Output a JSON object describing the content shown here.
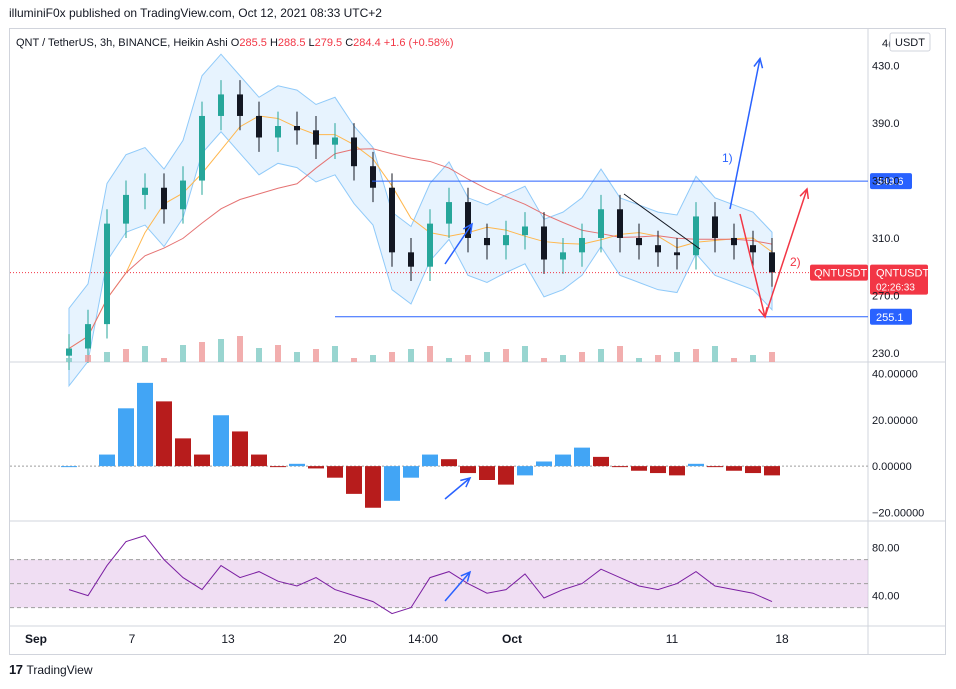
{
  "published_line": "illuminiF0x published on TradingView.com, Oct 12, 2021 08:33 UTC+2",
  "header": {
    "symbol": "QNT / TetherUS, 3h, BINANCE, Heikin Ashi",
    "o_label": "O",
    "o_value": "285.5",
    "h_label": "H",
    "h_value": "288.5",
    "l_label": "L",
    "l_value": "279.5",
    "c_label": "C",
    "c_value": "284.4",
    "change": "+1.6 (+0.58%)",
    "currency_badge": "USDT",
    "top_axis_partial": "4("
  },
  "colors": {
    "up": "#26a69a",
    "down": "#131722",
    "accent_blue": "#2962ff",
    "red": "#f23645",
    "hist_red": "#b71c1c",
    "hist_blue": "#42a5f5",
    "rsi": "#7b1fa2",
    "bb_fill": "#bbdefb",
    "ma_red": "#e57373",
    "ma_orange": "#ffb74d"
  },
  "chart_data": [
    {
      "type": "candlestick",
      "title": "QNT / TetherUS, 3h, BINANCE, Heikin Ashi",
      "x_ticks": [
        "Sep",
        "7",
        "13",
        "20",
        "14:00",
        "Oct",
        "11",
        "18"
      ],
      "y_ticks": [
        "430.0",
        "390.0",
        "350.0",
        "310.0",
        "270.0",
        "230.0"
      ],
      "ylim": [
        225,
        450
      ],
      "series": [
        {
          "name": "Heikin Ashi closes (approx.)",
          "x": [
            3,
            4,
            5,
            6,
            7,
            8,
            9,
            10,
            11,
            12,
            13,
            14,
            15,
            16,
            17,
            18,
            19,
            20,
            21,
            22,
            23,
            24,
            25,
            26,
            27,
            28,
            29,
            30,
            31,
            32,
            33,
            34,
            35,
            36,
            37,
            38,
            39,
            40
          ],
          "values": [
            233,
            250,
            320,
            340,
            345,
            330,
            350,
            395,
            410,
            395,
            380,
            388,
            385,
            375,
            380,
            360,
            345,
            300,
            290,
            320,
            335,
            310,
            305,
            312,
            318,
            295,
            300,
            310,
            330,
            310,
            305,
            300,
            298,
            325,
            310,
            305,
            300,
            286
          ]
        }
      ],
      "bollinger": {
        "upper_approx": 330,
        "lower_approx": 280
      },
      "levels": [
        {
          "label": "349.6",
          "value": 349.6,
          "color": "#2962ff"
        },
        {
          "label": "255.1",
          "value": 255.1,
          "color": "#2962ff"
        },
        {
          "label": "QNTUSDT",
          "value": 285.9,
          "color": "#f23645"
        }
      ],
      "last_price": "285.9",
      "countdown": "02:26:33",
      "annotations": [
        {
          "label": "1)",
          "direction": "up",
          "target": 435
        },
        {
          "label": "2)",
          "direction": "down-then-up",
          "target": 255
        }
      ]
    },
    {
      "type": "bar",
      "title": "",
      "y_ticks": [
        "40.00000",
        "20.00000",
        "0.00000",
        "−20.00000"
      ],
      "ylim": [
        -22,
        42
      ],
      "series": [
        {
          "name": "",
          "x": [
            3,
            5,
            6,
            7,
            8,
            9,
            10,
            11,
            12,
            13,
            14,
            15,
            16,
            17,
            18,
            19,
            20,
            21,
            22,
            23,
            24,
            25,
            26,
            27,
            28,
            29,
            30,
            31,
            32,
            33,
            34,
            35,
            36,
            37,
            38,
            39,
            40
          ],
          "values": [
            0,
            5,
            25,
            36,
            28,
            12,
            5,
            22,
            15,
            5,
            0,
            1,
            -1,
            -5,
            -12,
            -18,
            -15,
            -5,
            5,
            3,
            -3,
            -6,
            -8,
            -4,
            2,
            5,
            8,
            4,
            0,
            -2,
            -3,
            -4,
            1,
            0,
            -2,
            -3,
            -4
          ]
        }
      ]
    },
    {
      "type": "line",
      "title": "",
      "y_ticks": [
        "80.00",
        "40.00"
      ],
      "ylim": [
        18,
        98
      ],
      "bands": [
        30,
        50,
        70
      ],
      "series": [
        {
          "name": "",
          "x": [
            3,
            4,
            5,
            6,
            7,
            8,
            9,
            10,
            11,
            12,
            13,
            14,
            15,
            16,
            17,
            18,
            19,
            20,
            21,
            22,
            23,
            24,
            25,
            26,
            27,
            28,
            29,
            30,
            31,
            32,
            33,
            34,
            35,
            36,
            37,
            38,
            39,
            40
          ],
          "values": [
            45,
            40,
            65,
            85,
            90,
            70,
            55,
            45,
            65,
            55,
            60,
            52,
            48,
            55,
            45,
            40,
            35,
            25,
            30,
            55,
            60,
            50,
            42,
            45,
            58,
            38,
            45,
            50,
            62,
            55,
            48,
            45,
            50,
            60,
            48,
            45,
            42,
            35
          ]
        }
      ]
    }
  ],
  "footer": {
    "brand_mark": "17",
    "brand_name": "TradingView"
  }
}
